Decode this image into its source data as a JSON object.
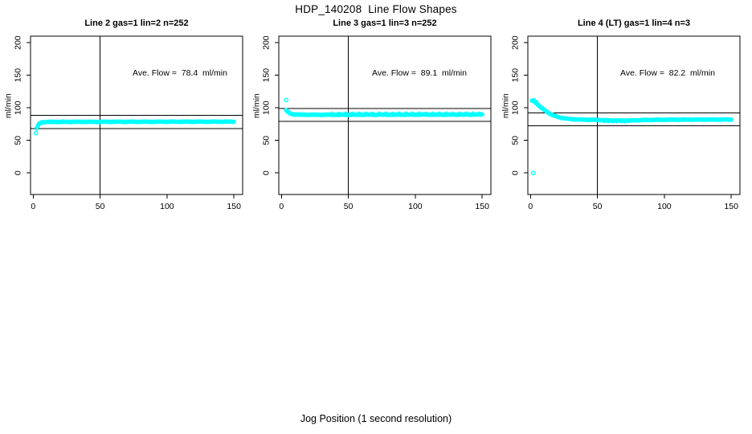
{
  "figure": {
    "title": "HDP_140208  Line Flow Shapes",
    "xlabel": "Jog Position (1 second resolution)"
  },
  "colors": {
    "points": "#00FFFF",
    "axis": "#000000",
    "text": "#000000",
    "background": "#FFFFFF"
  },
  "chart_data": [
    {
      "type": "scatter",
      "title": "Line 2 gas=1 lin=2 n=252",
      "annotation": "Ave. Flow =  78.4  ml/min",
      "ave_flow": 78.4,
      "ylabel": "ml/min",
      "xticks": [
        0,
        50,
        100,
        150
      ],
      "yticks": [
        0,
        50,
        100,
        150,
        200
      ],
      "xlim": [
        -2,
        156.5
      ],
      "ylim": [
        -33,
        210
      ],
      "vlines": [
        50
      ],
      "hlines": [
        88.4,
        68.4
      ],
      "outliers": [
        [
          2,
          61
        ]
      ],
      "curve": [
        [
          2.5,
          68
        ],
        [
          3,
          70.5
        ],
        [
          3.5,
          72.5
        ],
        [
          4,
          74.3
        ],
        [
          4.5,
          75.5
        ],
        [
          5,
          76.4
        ],
        [
          6,
          77.4
        ],
        [
          7,
          77.9
        ],
        [
          8,
          78.1
        ],
        [
          10,
          78.3
        ],
        [
          12,
          78.4
        ],
        [
          15,
          78.4
        ],
        [
          20,
          78.5
        ],
        [
          25,
          78.5
        ],
        [
          30,
          78.5
        ],
        [
          40,
          78.5
        ],
        [
          50,
          78.5
        ],
        [
          60,
          78.6
        ],
        [
          70,
          78.6
        ],
        [
          80,
          78.6
        ],
        [
          90,
          78.6
        ],
        [
          100,
          78.7
        ],
        [
          110,
          78.7
        ],
        [
          120,
          78.7
        ],
        [
          130,
          78.7
        ],
        [
          140,
          78.8
        ],
        [
          150,
          78.8
        ]
      ],
      "extras": []
    },
    {
      "type": "scatter",
      "title": "Line 3 gas=1 lin=3 n=252",
      "annotation": "Ave. Flow =  89.1  ml/min",
      "ave_flow": 89.1,
      "ylabel": "ml/min",
      "xticks": [
        0,
        50,
        100,
        150
      ],
      "yticks": [
        0,
        50,
        100,
        150,
        200
      ],
      "xlim": [
        -2,
        156.5
      ],
      "ylim": [
        -33,
        210
      ],
      "vlines": [
        50
      ],
      "hlines": [
        99.1,
        79.1
      ],
      "outliers": [
        [
          3.5,
          112
        ]
      ],
      "curve": [
        [
          3.5,
          96.5
        ],
        [
          4,
          95.2
        ],
        [
          4.5,
          94.2
        ],
        [
          5,
          93.3
        ],
        [
          6,
          91.9
        ],
        [
          7,
          91
        ],
        [
          8,
          90.4
        ],
        [
          10,
          89.9
        ],
        [
          12,
          89.7
        ],
        [
          15,
          89.5
        ],
        [
          20,
          89.4
        ],
        [
          30,
          89.4
        ],
        [
          40,
          89.4
        ],
        [
          50,
          89.4
        ],
        [
          60,
          89.5
        ],
        [
          70,
          89.5
        ],
        [
          80,
          89.5
        ],
        [
          90,
          89.5
        ],
        [
          100,
          89.6
        ],
        [
          110,
          89.6
        ],
        [
          120,
          89.6
        ],
        [
          130,
          89.6
        ],
        [
          140,
          89.7
        ],
        [
          150,
          89.7
        ]
      ],
      "extras": [
        [
          38,
          91.3
        ],
        [
          43,
          91.2
        ],
        [
          48,
          91.4
        ],
        [
          53,
          91.2
        ],
        [
          58,
          91.3
        ],
        [
          63,
          91.4
        ],
        [
          68,
          91.2
        ],
        [
          73,
          91.3
        ],
        [
          78,
          91.4
        ],
        [
          83,
          91.2
        ],
        [
          88,
          91.3
        ],
        [
          93,
          91.5
        ],
        [
          98,
          91.3
        ],
        [
          103,
          91.4
        ],
        [
          108,
          91.2
        ],
        [
          113,
          91.4
        ],
        [
          118,
          91.3
        ],
        [
          123,
          91.5
        ],
        [
          128,
          91.3
        ],
        [
          133,
          91.4
        ],
        [
          138,
          91.3
        ],
        [
          143,
          91.5
        ],
        [
          148,
          91.4
        ]
      ]
    },
    {
      "type": "scatter",
      "title": "Line 4 (LT) gas=1 lin=4 n=3",
      "annotation": "Ave. Flow =  82.2  ml/min",
      "ave_flow": 82.2,
      "ylabel": "ml/min",
      "xticks": [
        0,
        50,
        100,
        150
      ],
      "yticks": [
        0,
        50,
        100,
        150,
        200
      ],
      "xlim": [
        -2,
        156.5
      ],
      "ylim": [
        -33,
        210
      ],
      "vlines": [
        50
      ],
      "hlines": [
        92.2,
        72.2
      ],
      "outliers": [
        [
          2,
          0
        ]
      ],
      "curve": [
        [
          1,
          111
        ],
        [
          1.5,
          111
        ],
        [
          2,
          110.6
        ],
        [
          2.5,
          110
        ],
        [
          3,
          109.3
        ],
        [
          4,
          107.6
        ],
        [
          5,
          105.8
        ],
        [
          6,
          104
        ],
        [
          7,
          102.2
        ],
        [
          8,
          100.4
        ],
        [
          9,
          98.7
        ],
        [
          10,
          97
        ],
        [
          11,
          95.5
        ],
        [
          12,
          94.1
        ],
        [
          13,
          92.8
        ],
        [
          14,
          91.6
        ],
        [
          15,
          90.5
        ],
        [
          16,
          89.5
        ],
        [
          17,
          88.6
        ],
        [
          18,
          87.8
        ],
        [
          19,
          87.1
        ],
        [
          20,
          86.4
        ],
        [
          22,
          85.3
        ],
        [
          24,
          84.4
        ],
        [
          26,
          83.7
        ],
        [
          28,
          83.2
        ],
        [
          30,
          82.8
        ],
        [
          33,
          82.4
        ],
        [
          36,
          82.1
        ],
        [
          40,
          81.9
        ],
        [
          45,
          81.7
        ],
        [
          50,
          81.5
        ],
        [
          55,
          81.1
        ],
        [
          60,
          80.7
        ],
        [
          65,
          80.5
        ],
        [
          70,
          80.5
        ],
        [
          75,
          80.7
        ],
        [
          80,
          81
        ],
        [
          85,
          81.3
        ],
        [
          90,
          81.5
        ],
        [
          95,
          81.7
        ],
        [
          100,
          81.8
        ],
        [
          110,
          81.9
        ],
        [
          120,
          82
        ],
        [
          130,
          82
        ],
        [
          140,
          82
        ],
        [
          150,
          82
        ]
      ],
      "extras": [
        [
          2.5,
          112
        ],
        [
          3.5,
          110
        ],
        [
          4.5,
          108.8
        ],
        [
          55,
          79.4
        ],
        [
          58,
          79.1
        ],
        [
          61,
          79.3
        ],
        [
          64,
          79
        ],
        [
          67,
          79.3
        ],
        [
          70,
          79.1
        ],
        [
          73,
          79.4
        ]
      ]
    }
  ]
}
